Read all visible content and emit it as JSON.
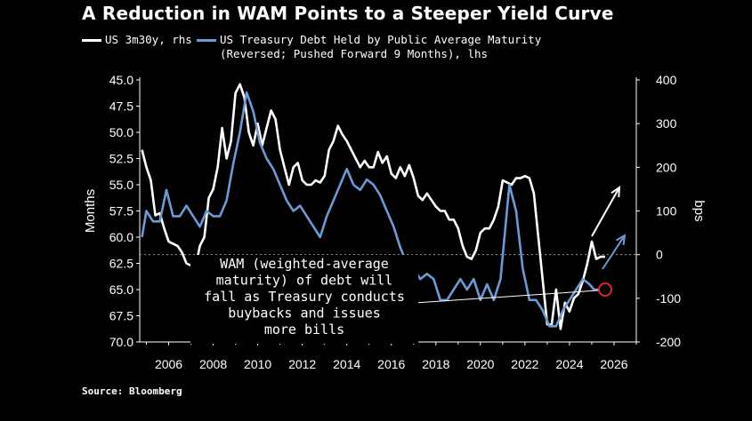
{
  "title": "A Reduction in WAM Points to a Steeper Yield Curve",
  "legend": {
    "series_a": "US 3m30y, rhs",
    "series_b_line1": "US Treasury Debt Held by Public Average Maturity",
    "series_b_line2": "(Reversed; Pushed Forward 9 Months), lhs"
  },
  "source": "Source: Bloomberg",
  "annotation": [
    "WAM (weighted-average",
    "maturity) of debt will",
    "fall as Treasury conducts",
    "buybacks and issues",
    "more bills"
  ],
  "colors": {
    "background": "#000000",
    "series_a": "#ffffff",
    "series_b": "#6b9bd6",
    "marker": "#e0282c"
  },
  "chart_data": {
    "type": "line",
    "title": "A Reduction in WAM Points to a Steeper Yield Curve",
    "xlabel": "",
    "ylabel_left": "Months",
    "ylabel_right": "bps",
    "x_ticks": [
      "2006",
      "2008",
      "2010",
      "2012",
      "2014",
      "2016",
      "2018",
      "2020",
      "2022",
      "2024",
      "2026"
    ],
    "y_left_ticks": [
      "45.0",
      "47.5",
      "50.0",
      "52.5",
      "55.0",
      "57.5",
      "60.0",
      "62.5",
      "65.0",
      "67.5",
      "70.0"
    ],
    "y_left_range": [
      45.0,
      70.0
    ],
    "y_left_reversed": true,
    "y_right_ticks": [
      "400",
      "300",
      "200",
      "100",
      "0",
      "-100",
      "-200"
    ],
    "y_right_range": [
      -200,
      400
    ],
    "xlim": [
      2004.7,
      2027.0
    ],
    "series": [
      {
        "name": "US 3m30y, rhs",
        "axis": "right",
        "color": "#ffffff",
        "x": [
          2004.8,
          2005.0,
          2005.2,
          2005.4,
          2005.6,
          2005.8,
          2006.0,
          2006.2,
          2006.4,
          2006.6,
          2006.8,
          2007.0,
          2007.2,
          2007.4,
          2007.6,
          2007.8,
          2008.0,
          2008.2,
          2008.4,
          2008.6,
          2008.8,
          2009.0,
          2009.2,
          2009.4,
          2009.6,
          2009.8,
          2010.0,
          2010.2,
          2010.4,
          2010.6,
          2010.8,
          2011.0,
          2011.2,
          2011.4,
          2011.6,
          2011.8,
          2012.0,
          2012.2,
          2012.4,
          2012.6,
          2012.8,
          2013.0,
          2013.2,
          2013.4,
          2013.6,
          2013.8,
          2014.0,
          2014.2,
          2014.4,
          2014.6,
          2014.8,
          2015.0,
          2015.2,
          2015.4,
          2015.6,
          2015.8,
          2016.0,
          2016.2,
          2016.4,
          2016.6,
          2016.8,
          2017.0,
          2017.2,
          2017.4,
          2017.6,
          2017.8,
          2018.0,
          2018.2,
          2018.4,
          2018.6,
          2018.8,
          2019.0,
          2019.2,
          2019.4,
          2019.6,
          2019.8,
          2020.0,
          2020.2,
          2020.4,
          2020.6,
          2020.8,
          2021.0,
          2021.2,
          2021.4,
          2021.6,
          2021.8,
          2022.0,
          2022.2,
          2022.4,
          2022.6,
          2022.8,
          2023.0,
          2023.2,
          2023.4,
          2023.6,
          2023.8,
          2024.0,
          2024.2,
          2024.4,
          2024.6,
          2024.8,
          2025.0,
          2025.2,
          2025.4,
          2025.6
        ],
        "values": [
          240,
          200,
          170,
          90,
          95,
          60,
          30,
          25,
          20,
          5,
          -20,
          -25,
          -30,
          20,
          40,
          130,
          150,
          200,
          290,
          220,
          260,
          370,
          390,
          360,
          280,
          250,
          300,
          250,
          290,
          330,
          310,
          240,
          200,
          160,
          200,
          210,
          170,
          160,
          160,
          170,
          165,
          180,
          240,
          260,
          295,
          275,
          260,
          240,
          220,
          200,
          215,
          200,
          200,
          235,
          210,
          225,
          185,
          175,
          200,
          180,
          205,
          175,
          135,
          125,
          140,
          125,
          110,
          100,
          100,
          80,
          80,
          60,
          20,
          -5,
          -10,
          10,
          50,
          60,
          60,
          80,
          110,
          170,
          165,
          160,
          175,
          175,
          180,
          175,
          140,
          40,
          -60,
          -160,
          -160,
          -80,
          -170,
          -110,
          -130,
          -100,
          -90,
          -60,
          -20,
          30,
          -10,
          -5,
          -5
        ]
      },
      {
        "name": "US Treasury Debt Held by Public Average Maturity (Reversed; Pushed Forward 9 Months), lhs",
        "axis": "left",
        "color": "#6b9bd6",
        "x": [
          2004.8,
          2005.0,
          2005.3,
          2005.6,
          2005.9,
          2006.2,
          2006.5,
          2006.8,
          2007.1,
          2007.4,
          2007.7,
          2008.0,
          2008.3,
          2008.6,
          2008.9,
          2009.2,
          2009.5,
          2009.8,
          2010.1,
          2010.4,
          2010.7,
          2011.0,
          2011.3,
          2011.6,
          2011.9,
          2012.2,
          2012.5,
          2012.8,
          2013.1,
          2013.4,
          2013.7,
          2014.0,
          2014.3,
          2014.6,
          2014.9,
          2015.2,
          2015.5,
          2015.8,
          2016.1,
          2016.4,
          2016.7,
          2017.0,
          2017.3,
          2017.6,
          2017.9,
          2018.2,
          2018.5,
          2018.8,
          2019.1,
          2019.4,
          2019.7,
          2020.0,
          2020.3,
          2020.6,
          2020.9,
          2021.1,
          2021.3,
          2021.6,
          2021.9,
          2022.2,
          2022.5,
          2022.8,
          2023.1,
          2023.4,
          2023.7,
          2024.0,
          2024.3,
          2024.6,
          2024.9,
          2025.1,
          2025.3
        ],
        "values": [
          60.0,
          57.5,
          58.5,
          58.5,
          55.5,
          58.0,
          58.0,
          57.0,
          58.0,
          59.0,
          57.5,
          58.0,
          58.0,
          56.5,
          53.0,
          50.0,
          46.2,
          48.0,
          51.0,
          52.5,
          53.5,
          55.0,
          56.5,
          57.5,
          57.0,
          58.0,
          59.0,
          60.0,
          58.0,
          56.5,
          55.0,
          53.5,
          55.0,
          55.5,
          54.5,
          55.0,
          56.0,
          57.5,
          59.0,
          61.0,
          62.5,
          63.0,
          64.0,
          63.5,
          64.0,
          66.0,
          66.0,
          65.0,
          64.0,
          65.0,
          64.0,
          66.0,
          64.5,
          66.0,
          64.0,
          59.5,
          55.0,
          57.5,
          63.0,
          66.0,
          66.0,
          67.0,
          68.5,
          68.5,
          67.0,
          66.0,
          65.0,
          64.0,
          64.5,
          65.0,
          65.0
        ]
      }
    ],
    "highlight_point": {
      "x": 2025.6,
      "y_left": 65.0
    },
    "reference_line_right": 0
  }
}
